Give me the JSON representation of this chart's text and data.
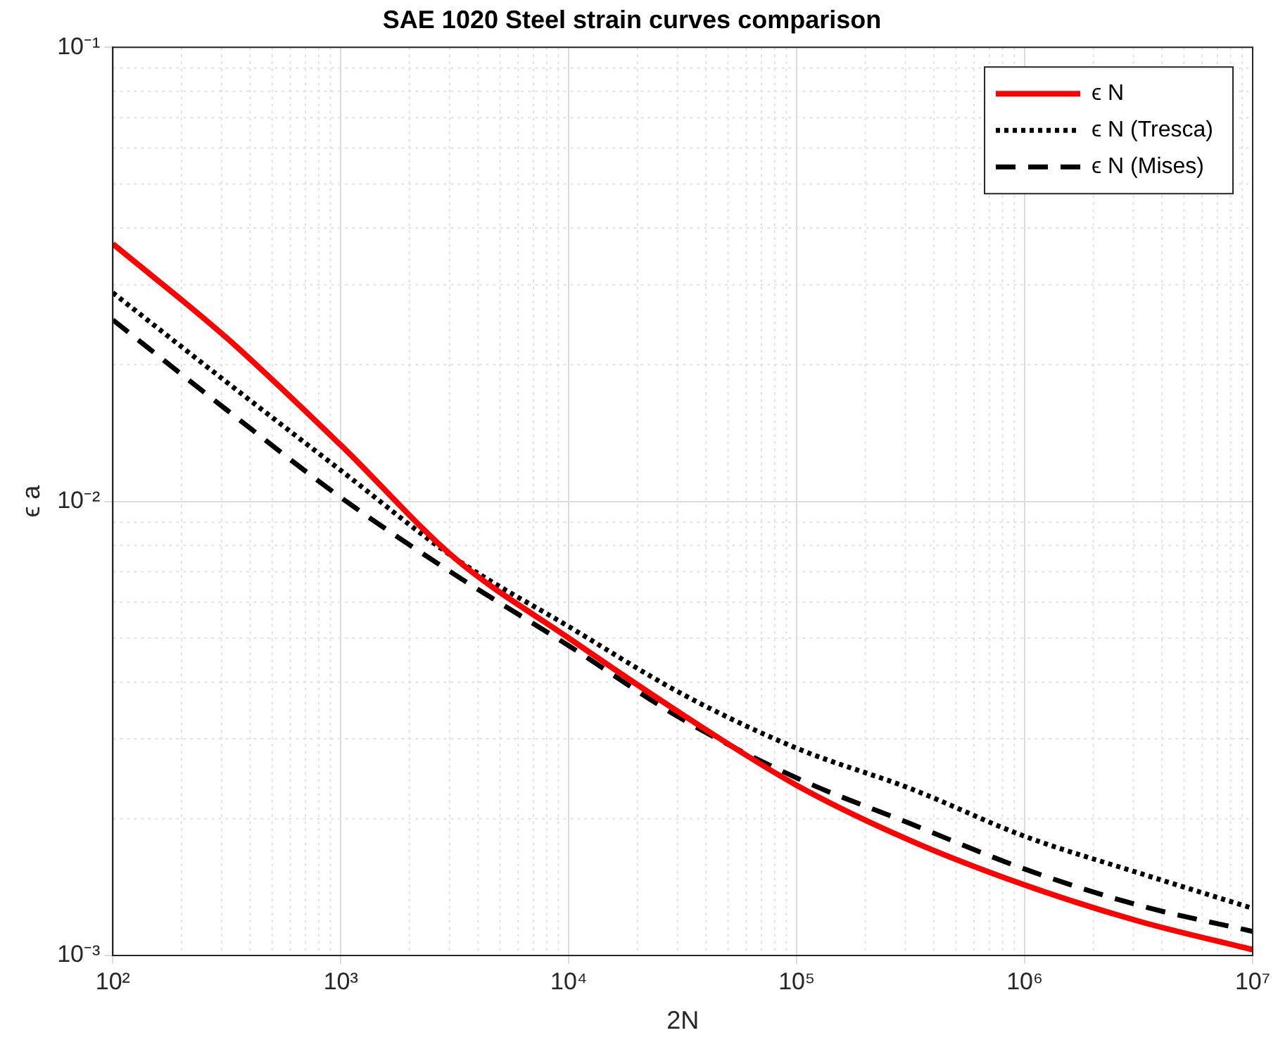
{
  "chart_data": {
    "type": "line",
    "title": "SAE 1020 Steel strain curves comparison",
    "xlabel": "2N",
    "ylabel": "ϵ a",
    "log": "xy",
    "grid": true,
    "legend": "top right",
    "marker": "none",
    "x": [
      100,
      316,
      1000,
      3162,
      10000,
      31623,
      100000,
      316228,
      1000000,
      3162278,
      10000000
    ],
    "xlim": [
      100,
      10000000
    ],
    "xticks": [
      {
        "value": 100,
        "label": "10²"
      },
      {
        "value": 1000,
        "label": "10³"
      },
      {
        "value": 10000,
        "label": "10⁴"
      },
      {
        "value": 100000,
        "label": "10⁵"
      },
      {
        "value": 1000000,
        "label": "10⁶"
      },
      {
        "value": 10000000,
        "label": "10⁷"
      }
    ],
    "ylim": [
      0.001,
      0.1
    ],
    "yticks": [
      {
        "value": 0.001,
        "label": "10⁻³"
      },
      {
        "value": 0.01,
        "label": "10⁻²"
      },
      {
        "value": 0.1,
        "label": "10⁻¹"
      }
    ],
    "series": [
      {
        "name": "ϵ N",
        "color": "#ff0000",
        "line_style": "solid",
        "values": [
          0.0369,
          0.0229,
          0.0133,
          0.0075,
          0.005,
          0.00339,
          0.00237,
          0.00179,
          0.00143,
          0.00119,
          0.00103
        ]
      },
      {
        "name": "ϵ N (Tresca)",
        "color": "#000000",
        "line_style": "dotted",
        "values": [
          0.0288,
          0.0183,
          0.0117,
          0.0075,
          0.0053,
          0.00376,
          0.00286,
          0.00233,
          0.00183,
          0.00152,
          0.00127
        ]
      },
      {
        "name": "ϵ N (Mises)",
        "color": "#000000",
        "line_style": "dashed",
        "values": [
          0.0251,
          0.0159,
          0.0102,
          0.0069,
          0.00481,
          0.00331,
          0.00246,
          0.00195,
          0.00155,
          0.00129,
          0.00113
        ]
      }
    ]
  }
}
